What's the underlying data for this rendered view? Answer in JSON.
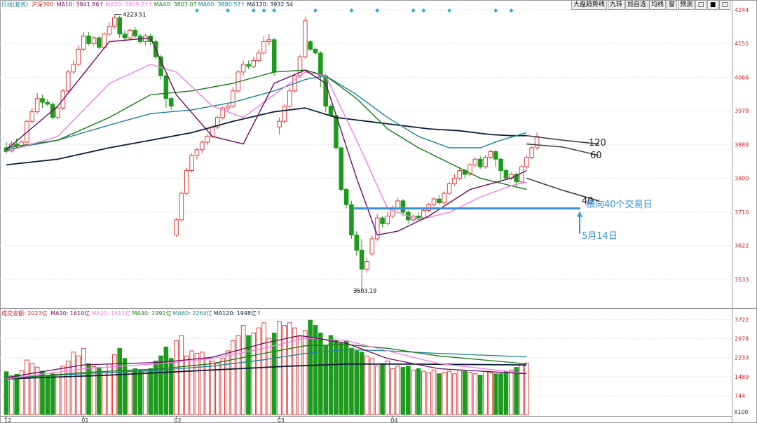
{
  "toolbar": {
    "buttons": [
      "大盘趋势线",
      "九转",
      "加自选",
      "均线",
      "窗",
      "预测"
    ],
    "icons": [
      "□",
      "■",
      "□"
    ]
  },
  "top_legend": {
    "period": "日线(复权)",
    "symbol": "沪深300",
    "items": [
      {
        "text": "MA10: 3841.86↑",
        "color": "#6b0a5f"
      },
      {
        "text": "MA20: 3809.27↑",
        "color": "#f07de6"
      },
      {
        "text": "MA40: 3803.07",
        "color": "#1a7a1a"
      },
      {
        "text": "MA60: 3880.57↑",
        "color": "#1b8496"
      },
      {
        "text": "MA120: 3932.54",
        "color": "#0b1e3a"
      }
    ]
  },
  "bottom_legend": {
    "label": "成交金额: 2023亿",
    "items": [
      {
        "text": "MA10: 1610亿",
        "color": "#6b0a5f"
      },
      {
        "text": "MA20: 1611亿",
        "color": "#f07de6"
      },
      {
        "text": "MA40: 1991亿",
        "color": "#1a7a1a"
      },
      {
        "text": "MA60: 2264亿",
        "color": "#1b8496"
      },
      {
        "text": "MA120: 1948亿↑",
        "color": "#0b1e3a"
      }
    ]
  },
  "annotations": {
    "high_label": "4223.51",
    "low_label": "3503.19",
    "line_labels": {
      "ma120": "120",
      "ma60": "60",
      "ma40": "40"
    },
    "sideways_text": "横向40个交易日",
    "date_text": "5月14日"
  },
  "colors": {
    "up": "#e23b3b",
    "down": "#1e9b1e",
    "grid": "#e0e0e0",
    "note": "#3a8fd8",
    "diamond": "#33aacc",
    "axis_text": "#cc2222"
  },
  "chart_data": {
    "type": "candlestick",
    "x_ticks": [
      {
        "i": 0,
        "label": "12"
      },
      {
        "i": 15,
        "label": "01"
      },
      {
        "i": 33,
        "label": "02"
      },
      {
        "i": 53,
        "label": "03"
      },
      {
        "i": 75,
        "label": "04"
      }
    ],
    "price_axis": {
      "ticks": [
        4244,
        4155,
        4066,
        3978,
        3888,
        3800,
        3710,
        3622,
        3533
      ],
      "range": [
        3470,
        4244
      ]
    },
    "volume_axis": {
      "ticks": [
        3722,
        2978,
        2233,
        1489,
        744
      ],
      "range": [
        0,
        3900
      ],
      "unit_label": "X100"
    },
    "candles": [
      [
        3880,
        3870,
        3895,
        3865
      ],
      [
        3872,
        3890,
        3898,
        3868
      ],
      [
        3890,
        3885,
        3905,
        3880
      ],
      [
        3885,
        3895,
        3900,
        3882
      ],
      [
        3895,
        3950,
        3955,
        3890
      ],
      [
        3950,
        3975,
        3985,
        3945
      ],
      [
        3975,
        4010,
        4025,
        3970
      ],
      [
        4010,
        4000,
        4020,
        3985
      ],
      [
        4000,
        3995,
        4008,
        3990
      ],
      [
        3995,
        3960,
        4000,
        3955
      ],
      [
        3960,
        3985,
        3990,
        3955
      ],
      [
        3985,
        4030,
        4035,
        3980
      ],
      [
        4030,
        4080,
        4085,
        4025
      ],
      [
        4080,
        4100,
        4110,
        4075
      ],
      [
        4100,
        4140,
        4150,
        4095
      ],
      [
        4140,
        4175,
        4185,
        4135
      ],
      [
        4175,
        4155,
        4185,
        4150
      ],
      [
        4155,
        4170,
        4175,
        4148
      ],
      [
        4170,
        4145,
        4175,
        4140
      ],
      [
        4145,
        4180,
        4185,
        4140
      ],
      [
        4180,
        4200,
        4212,
        4175
      ],
      [
        4200,
        4223,
        4230,
        4195
      ],
      [
        4223,
        4180,
        4228,
        4170
      ],
      [
        4180,
        4170,
        4190,
        4160
      ],
      [
        4170,
        4190,
        4195,
        4165
      ],
      [
        4190,
        4175,
        4198,
        4170
      ],
      [
        4175,
        4160,
        4180,
        4155
      ],
      [
        4160,
        4175,
        4180,
        4150
      ],
      [
        4175,
        4160,
        4182,
        4150
      ],
      [
        4160,
        4120,
        4165,
        4115
      ],
      [
        4120,
        4070,
        4125,
        4060
      ],
      [
        4070,
        4010,
        4075,
        3985
      ],
      [
        4010,
        3990,
        4015,
        3980
      ],
      [
        3650,
        3690,
        3695,
        3645
      ],
      [
        3690,
        3760,
        3765,
        3685
      ],
      [
        3760,
        3820,
        3828,
        3755
      ],
      [
        3820,
        3860,
        3865,
        3815
      ],
      [
        3860,
        3875,
        3880,
        3850
      ],
      [
        3875,
        3895,
        3900,
        3865
      ],
      [
        3895,
        3910,
        3915,
        3888
      ],
      [
        3910,
        3935,
        3940,
        3905
      ],
      [
        3935,
        3960,
        3965,
        3930
      ],
      [
        3960,
        3985,
        3990,
        3955
      ],
      [
        3985,
        3990,
        3998,
        3975
      ],
      [
        3990,
        4030,
        4040,
        3985
      ],
      [
        4030,
        4080,
        4085,
        4025
      ],
      [
        4080,
        4100,
        4110,
        4070
      ],
      [
        4100,
        4095,
        4110,
        4088
      ],
      [
        4095,
        4110,
        4120,
        4090
      ],
      [
        4110,
        4130,
        4140,
        4105
      ],
      [
        4130,
        4160,
        4175,
        4125
      ],
      [
        4160,
        4165,
        4180,
        4150
      ],
      [
        4165,
        4080,
        4170,
        4070
      ],
      [
        3935,
        3950,
        3960,
        3915
      ],
      [
        3950,
        3990,
        3995,
        3945
      ],
      [
        3990,
        4030,
        4040,
        3985
      ],
      [
        4030,
        4070,
        4075,
        4025
      ],
      [
        4070,
        4120,
        4125,
        4065
      ],
      [
        4120,
        4215,
        4225,
        4115
      ],
      [
        4160,
        4140,
        4165,
        4135
      ],
      [
        4140,
        4130,
        4145,
        4125
      ],
      [
        4130,
        4070,
        4135,
        4040
      ],
      [
        4070,
        3990,
        4075,
        3975
      ],
      [
        3990,
        3965,
        3995,
        3960
      ],
      [
        3965,
        3880,
        3970,
        3875
      ],
      [
        3880,
        3770,
        3885,
        3765
      ],
      [
        3770,
        3730,
        3775,
        3720
      ],
      [
        3730,
        3650,
        3740,
        3640
      ],
      [
        3650,
        3610,
        3660,
        3595
      ],
      [
        3610,
        3560,
        3640,
        3503
      ],
      [
        3560,
        3580,
        3590,
        3550
      ],
      [
        3600,
        3640,
        3650,
        3595
      ],
      [
        3640,
        3695,
        3705,
        3635
      ],
      [
        3695,
        3680,
        3700,
        3670
      ],
      [
        3680,
        3700,
        3710,
        3675
      ],
      [
        3700,
        3720,
        3728,
        3695
      ],
      [
        3720,
        3740,
        3748,
        3715
      ],
      [
        3740,
        3710,
        3745,
        3700
      ],
      [
        3710,
        3690,
        3715,
        3680
      ],
      [
        3690,
        3700,
        3705,
        3685
      ],
      [
        3700,
        3695,
        3710,
        3690
      ],
      [
        3695,
        3715,
        3720,
        3690
      ],
      [
        3715,
        3730,
        3735,
        3710
      ],
      [
        3730,
        3745,
        3750,
        3725
      ],
      [
        3745,
        3735,
        3755,
        3730
      ],
      [
        3735,
        3760,
        3765,
        3730
      ],
      [
        3760,
        3785,
        3790,
        3755
      ],
      [
        3785,
        3800,
        3810,
        3780
      ],
      [
        3800,
        3820,
        3830,
        3795
      ],
      [
        3820,
        3810,
        3825,
        3800
      ],
      [
        3810,
        3835,
        3840,
        3805
      ],
      [
        3835,
        3850,
        3855,
        3830
      ],
      [
        3850,
        3830,
        3858,
        3825
      ],
      [
        3830,
        3855,
        3860,
        3825
      ],
      [
        3855,
        3870,
        3875,
        3850
      ],
      [
        3870,
        3850,
        3875,
        3830
      ],
      [
        3850,
        3820,
        3855,
        3790
      ],
      [
        3820,
        3800,
        3825,
        3795
      ],
      [
        3800,
        3810,
        3815,
        3795
      ],
      [
        3810,
        3790,
        3815,
        3775
      ],
      [
        3790,
        3830,
        3835,
        3785
      ],
      [
        3830,
        3855,
        3860,
        3825
      ],
      [
        3855,
        3880,
        3885,
        3850
      ],
      [
        3880,
        3910,
        3920,
        3875
      ]
    ],
    "volumes": [
      1680,
      1520,
      1580,
      1720,
      2140,
      2010,
      1860,
      1700,
      1540,
      1600,
      1580,
      1900,
      2100,
      2450,
      2300,
      2600,
      2000,
      1880,
      1850,
      1650,
      1980,
      2350,
      2600,
      2200,
      1750,
      1800,
      1750,
      1700,
      1800,
      2100,
      2300,
      2650,
      2200,
      2900,
      3100,
      2300,
      2500,
      2400,
      2450,
      2200,
      2100,
      2000,
      2200,
      2500,
      2900,
      3100,
      3500,
      3100,
      3200,
      3400,
      3600,
      3000,
      3200,
      3650,
      3500,
      3600,
      3400,
      3050,
      3300,
      3700,
      3500,
      3200,
      2700,
      3100,
      2900,
      2800,
      2900,
      2600,
      2500,
      2450,
      2300,
      2200,
      1900,
      2000,
      2100,
      1800,
      1900,
      1850,
      1900,
      1750,
      1800,
      1700,
      1650,
      1750,
      1600,
      1650,
      1700,
      1600,
      1750,
      1700,
      1650,
      1600,
      1550,
      1700,
      1650,
      1600,
      1600,
      1700,
      1750,
      1850,
      2000,
      2023
    ],
    "ma_series": {
      "ma10": [
        [
          0,
          3875
        ],
        [
          10,
          3990
        ],
        [
          20,
          4160
        ],
        [
          28,
          4170
        ],
        [
          33,
          4020
        ],
        [
          40,
          3910
        ],
        [
          46,
          3890
        ],
        [
          52,
          4050
        ],
        [
          58,
          4085
        ],
        [
          62,
          4050
        ],
        [
          68,
          3800
        ],
        [
          72,
          3650
        ],
        [
          76,
          3660
        ],
        [
          82,
          3700
        ],
        [
          90,
          3770
        ],
        [
          98,
          3800
        ],
        [
          101,
          3820
        ]
      ],
      "ma20": [
        [
          0,
          3870
        ],
        [
          10,
          3910
        ],
        [
          20,
          4050
        ],
        [
          28,
          4100
        ],
        [
          33,
          4080
        ],
        [
          40,
          3990
        ],
        [
          46,
          3960
        ],
        [
          52,
          4020
        ],
        [
          58,
          4080
        ],
        [
          62,
          4070
        ],
        [
          68,
          3900
        ],
        [
          74,
          3720
        ],
        [
          80,
          3690
        ],
        [
          86,
          3710
        ],
        [
          92,
          3750
        ],
        [
          98,
          3780
        ],
        [
          101,
          3790
        ]
      ],
      "ma40": [
        [
          0,
          3880
        ],
        [
          10,
          3900
        ],
        [
          20,
          3960
        ],
        [
          28,
          4020
        ],
        [
          36,
          4030
        ],
        [
          44,
          4050
        ],
        [
          52,
          4080
        ],
        [
          58,
          4085
        ],
        [
          62,
          4070
        ],
        [
          68,
          4010
        ],
        [
          74,
          3930
        ],
        [
          80,
          3880
        ],
        [
          86,
          3840
        ],
        [
          92,
          3800
        ],
        [
          98,
          3780
        ],
        [
          101,
          3770
        ]
      ],
      "ma60": [
        [
          0,
          3875
        ],
        [
          10,
          3900
        ],
        [
          20,
          3940
        ],
        [
          28,
          3970
        ],
        [
          36,
          3980
        ],
        [
          44,
          4000
        ],
        [
          52,
          4030
        ],
        [
          58,
          4060
        ],
        [
          62,
          4070
        ],
        [
          68,
          4020
        ],
        [
          74,
          3960
        ],
        [
          80,
          3910
        ],
        [
          86,
          3880
        ],
        [
          92,
          3880
        ],
        [
          96,
          3900
        ],
        [
          101,
          3920
        ]
      ],
      "ma120": [
        [
          0,
          3835
        ],
        [
          10,
          3850
        ],
        [
          20,
          3880
        ],
        [
          28,
          3900
        ],
        [
          36,
          3920
        ],
        [
          44,
          3950
        ],
        [
          52,
          3975
        ],
        [
          58,
          3985
        ],
        [
          64,
          3960
        ],
        [
          70,
          3950
        ],
        [
          76,
          3940
        ],
        [
          82,
          3930
        ],
        [
          88,
          3925
        ],
        [
          94,
          3915
        ],
        [
          98,
          3912
        ],
        [
          101,
          3912
        ]
      ],
      "ma120_ext": [
        [
          101,
          3912
        ],
        [
          108,
          3900
        ],
        [
          115,
          3890
        ]
      ],
      "ma60_ext": [
        [
          101,
          3890
        ],
        [
          108,
          3882
        ],
        [
          115,
          3860
        ]
      ],
      "ma40_ext": [
        [
          101,
          3800
        ],
        [
          108,
          3768
        ],
        [
          115,
          3740
        ]
      ]
    },
    "volume_ma_series": {
      "ma10": [
        [
          0,
          1450
        ],
        [
          15,
          1950
        ],
        [
          30,
          2050
        ],
        [
          40,
          2250
        ],
        [
          50,
          2800
        ],
        [
          57,
          3100
        ],
        [
          66,
          2800
        ],
        [
          74,
          2200
        ],
        [
          84,
          1800
        ],
        [
          101,
          1600
        ]
      ],
      "ma20": [
        [
          0,
          1400
        ],
        [
          15,
          1800
        ],
        [
          30,
          2000
        ],
        [
          40,
          2200
        ],
        [
          50,
          2600
        ],
        [
          58,
          3000
        ],
        [
          66,
          2900
        ],
        [
          74,
          2500
        ],
        [
          84,
          2000
        ],
        [
          101,
          1611
        ]
      ],
      "ma40": [
        [
          0,
          1400
        ],
        [
          15,
          1650
        ],
        [
          30,
          1800
        ],
        [
          40,
          2000
        ],
        [
          50,
          2400
        ],
        [
          58,
          2700
        ],
        [
          66,
          2750
        ],
        [
          74,
          2600
        ],
        [
          84,
          2300
        ],
        [
          101,
          1991
        ]
      ],
      "ma60": [
        [
          0,
          1450
        ],
        [
          15,
          1600
        ],
        [
          30,
          1750
        ],
        [
          40,
          1900
        ],
        [
          50,
          2150
        ],
        [
          58,
          2400
        ],
        [
          66,
          2550
        ],
        [
          74,
          2500
        ],
        [
          84,
          2400
        ],
        [
          101,
          2264
        ]
      ],
      "ma120": [
        [
          0,
          1400
        ],
        [
          20,
          1550
        ],
        [
          40,
          1750
        ],
        [
          55,
          1900
        ],
        [
          66,
          1980
        ],
        [
          80,
          1980
        ],
        [
          101,
          1948
        ]
      ]
    },
    "marker_indices": [
      37,
      43,
      48,
      50,
      52,
      60,
      67,
      72,
      79,
      81,
      86,
      95,
      98
    ],
    "high_index": 21,
    "low_index": 69,
    "sideways_level": 3720,
    "sideways_start_index": 66,
    "sideways_end_index": 112
  }
}
